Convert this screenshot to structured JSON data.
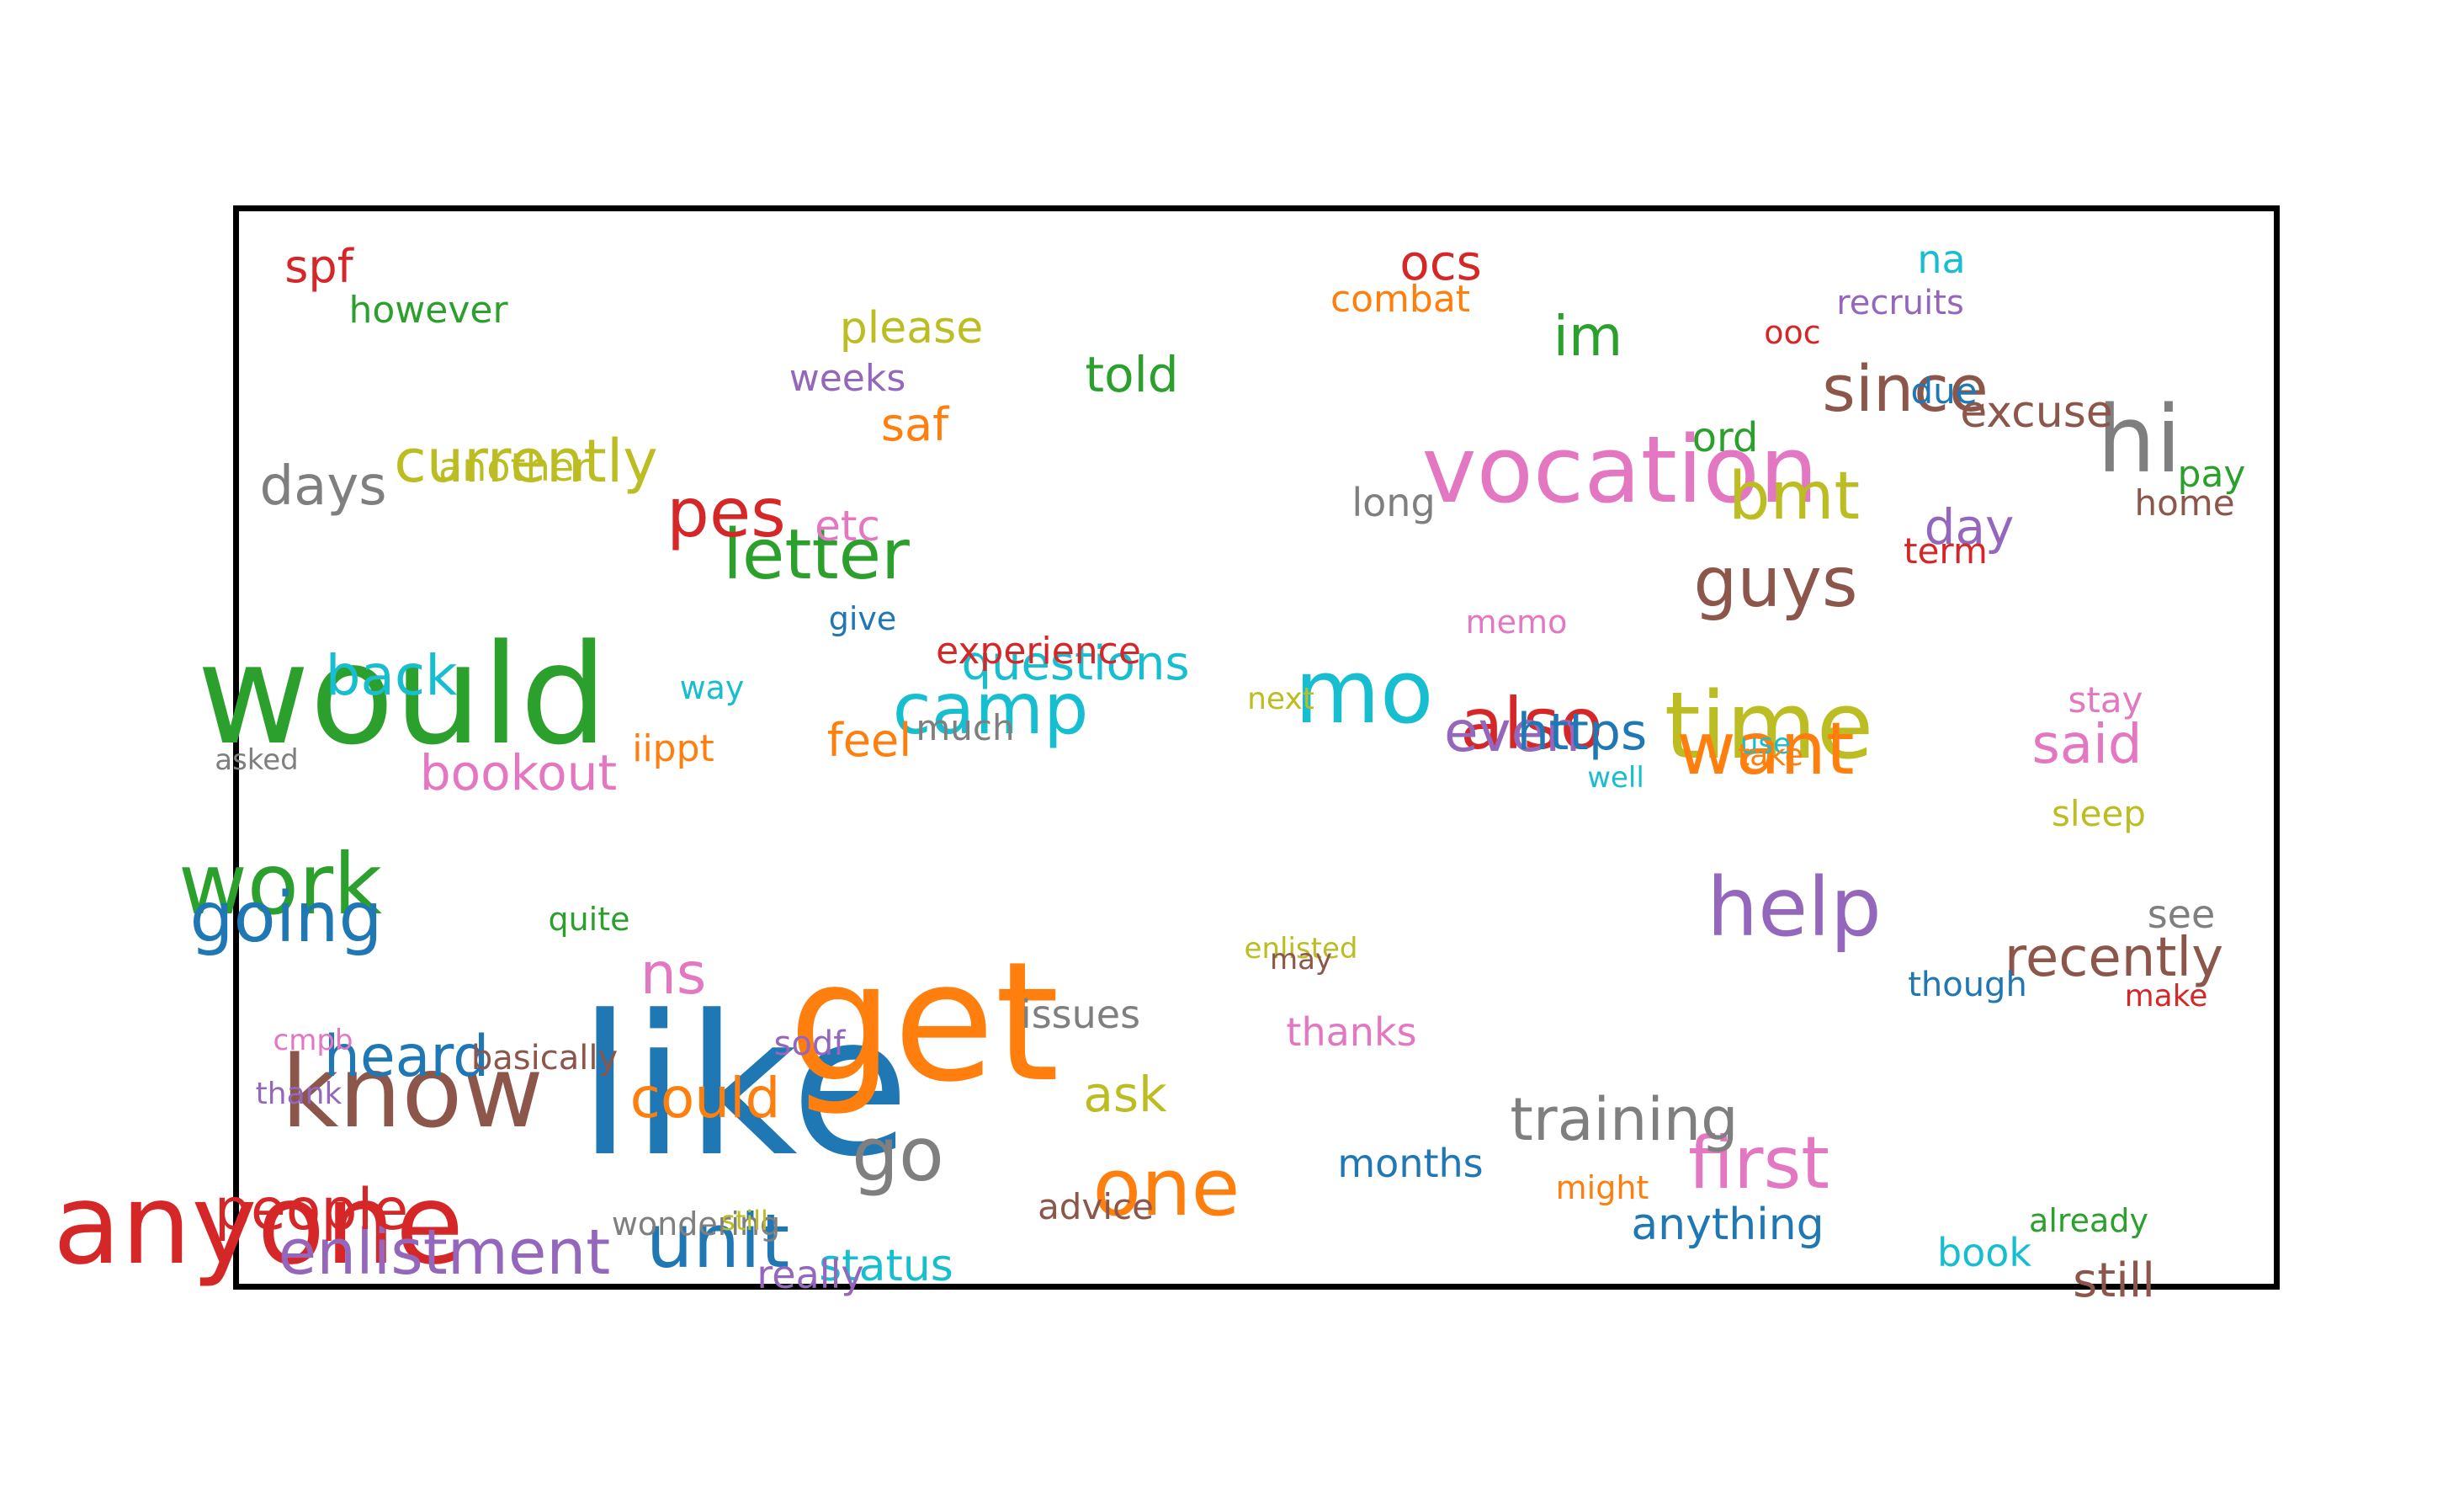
{
  "words": [
    {
      "text": "anyone",
      "color": "#d62728"
    },
    {
      "text": "like",
      "color": "#1f77b4"
    },
    {
      "text": "get",
      "color": "#ff7f0e"
    },
    {
      "text": "would",
      "color": "#2ca02c"
    },
    {
      "text": "vocation",
      "color": "#e377c2"
    },
    {
      "text": "know",
      "color": "#8c564b"
    },
    {
      "text": "time",
      "color": "#bcbd22"
    },
    {
      "text": "mo",
      "color": "#17becf"
    },
    {
      "text": "hi",
      "color": "#7f7f7f"
    },
    {
      "text": "want",
      "color": "#ff7f0e"
    },
    {
      "text": "one",
      "color": "#ff7f0e"
    },
    {
      "text": "unit",
      "color": "#1f77b4"
    },
    {
      "text": "go",
      "color": "#7f7f7f"
    },
    {
      "text": "help",
      "color": "#9467bd"
    },
    {
      "text": "enlistment",
      "color": "#9467bd"
    },
    {
      "text": "work",
      "color": "#2ca02c"
    },
    {
      "text": "going",
      "color": "#1f77b4"
    },
    {
      "text": "also",
      "color": "#d62728"
    },
    {
      "text": "first",
      "color": "#e377c2"
    },
    {
      "text": "guys",
      "color": "#8c564b"
    },
    {
      "text": "camp",
      "color": "#17becf"
    },
    {
      "text": "letter",
      "color": "#2ca02c"
    },
    {
      "text": "bmt",
      "color": "#bcbd22"
    },
    {
      "text": "pes",
      "color": "#d62728"
    },
    {
      "text": "people",
      "color": "#d62728"
    },
    {
      "text": "currently",
      "color": "#bcbd22"
    },
    {
      "text": "since",
      "color": "#8c564b"
    },
    {
      "text": "training",
      "color": "#7f7f7f"
    },
    {
      "text": "heard",
      "color": "#1f77b4"
    },
    {
      "text": "even",
      "color": "#9467bd"
    },
    {
      "text": "https",
      "color": "#1f77b4"
    },
    {
      "text": "could",
      "color": "#ff7f0e"
    },
    {
      "text": "back",
      "color": "#17becf"
    },
    {
      "text": "recently",
      "color": "#8c564b"
    },
    {
      "text": "said",
      "color": "#e377c2"
    },
    {
      "text": "questions",
      "color": "#17becf"
    },
    {
      "text": "ns",
      "color": "#e377c2"
    },
    {
      "text": "days",
      "color": "#7f7f7f"
    },
    {
      "text": "bookout",
      "color": "#e377c2"
    },
    {
      "text": "told",
      "color": "#2ca02c"
    },
    {
      "text": "im",
      "color": "#2ca02c"
    },
    {
      "text": "ask",
      "color": "#bcbd22"
    },
    {
      "text": "excuse",
      "color": "#8c564b"
    },
    {
      "text": "day",
      "color": "#9467bd"
    },
    {
      "text": "ocs",
      "color": "#d62728"
    },
    {
      "text": "please",
      "color": "#bcbd22"
    },
    {
      "text": "saf",
      "color": "#ff7f0e"
    },
    {
      "text": "status",
      "color": "#17becf"
    },
    {
      "text": "anything",
      "color": "#1f77b4"
    },
    {
      "text": "feel",
      "color": "#ff7f0e"
    },
    {
      "text": "another",
      "color": "#bcbd22"
    },
    {
      "text": "ord",
      "color": "#2ca02c"
    },
    {
      "text": "spf",
      "color": "#d62728"
    },
    {
      "text": "issues",
      "color": "#7f7f7f"
    },
    {
      "text": "etc",
      "color": "#e377c2"
    },
    {
      "text": "months",
      "color": "#1f77b4"
    },
    {
      "text": "thanks",
      "color": "#e377c2"
    },
    {
      "text": "really",
      "color": "#9467bd"
    },
    {
      "text": "na",
      "color": "#17becf"
    },
    {
      "text": "due",
      "color": "#1f77b4"
    },
    {
      "text": "long",
      "color": "#7f7f7f"
    },
    {
      "text": "however",
      "color": "#2ca02c"
    },
    {
      "text": "weeks",
      "color": "#9467bd"
    },
    {
      "text": "combat",
      "color": "#ff7f0e"
    },
    {
      "text": "experience",
      "color": "#d62728"
    },
    {
      "text": "much",
      "color": "#7f7f7f"
    },
    {
      "text": "recruits",
      "color": "#9467bd"
    },
    {
      "text": "advice",
      "color": "#8c564b"
    },
    {
      "text": "sleep",
      "color": "#bcbd22"
    },
    {
      "text": "home",
      "color": "#8c564b"
    },
    {
      "text": "pay",
      "color": "#2ca02c"
    },
    {
      "text": "see",
      "color": "#7f7f7f"
    },
    {
      "text": "book",
      "color": "#17becf"
    },
    {
      "text": "still",
      "color": "#8c564b"
    },
    {
      "text": "iippt",
      "color": "#ff7f0e"
    },
    {
      "text": "stay",
      "color": "#e377c2"
    },
    {
      "text": "basically",
      "color": "#8c564b"
    },
    {
      "text": "term",
      "color": "#d62728"
    },
    {
      "text": "memo",
      "color": "#e377c2"
    },
    {
      "text": "sodf",
      "color": "#9467bd"
    },
    {
      "text": "might",
      "color": "#ff7f0e"
    },
    {
      "text": "though",
      "color": "#1f77b4"
    },
    {
      "text": "give",
      "color": "#1f77b4"
    },
    {
      "text": "way",
      "color": "#17becf"
    },
    {
      "text": "quite",
      "color": "#2ca02c"
    },
    {
      "text": "next",
      "color": "#bcbd22"
    },
    {
      "text": "ooc",
      "color": "#d62728"
    },
    {
      "text": "already",
      "color": "#2ca02c"
    },
    {
      "text": "make",
      "color": "#d62728"
    },
    {
      "text": "wondering",
      "color": "#7f7f7f"
    },
    {
      "text": "cmpb",
      "color": "#e377c2"
    },
    {
      "text": "thank",
      "color": "#9467bd"
    },
    {
      "text": "still",
      "color": "#bcbd22"
    },
    {
      "text": "enlisted",
      "color": "#bcbd22"
    },
    {
      "text": "may",
      "color": "#8c564b"
    },
    {
      "text": "well",
      "color": "#17becf"
    },
    {
      "text": "use",
      "color": "#17becf"
    },
    {
      "text": "take",
      "color": "#ff7f0e"
    },
    {
      "text": "asked",
      "color": "#7f7f7f"
    }
  ]
}
